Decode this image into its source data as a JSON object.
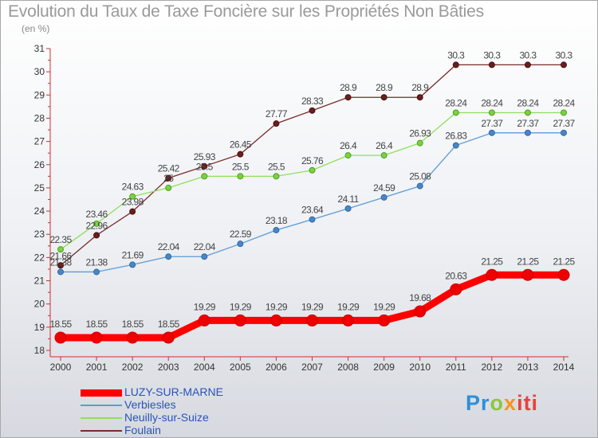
{
  "title": "Evolution du Taux de Taxe Foncière sur les Propriétés Non Bâties",
  "ylabel": "(en %)",
  "logo": {
    "p1": "Pr",
    "p2": "o",
    "p3": "x",
    "p4": "iti"
  },
  "chart_data": {
    "type": "line",
    "x": [
      2000,
      2001,
      2002,
      2003,
      2004,
      2005,
      2006,
      2007,
      2008,
      2009,
      2010,
      2011,
      2012,
      2013,
      2014
    ],
    "ylim": [
      18,
      31
    ],
    "yticks": [
      18,
      19,
      20,
      21,
      22,
      23,
      24,
      25,
      26,
      27,
      28,
      29,
      30,
      31
    ],
    "grid": false,
    "legend": "bottom-left",
    "series": [
      {
        "name": "LUZY-SUR-MARNE",
        "color": "#ff0000",
        "values": [
          18.55,
          18.55,
          18.55,
          18.55,
          19.29,
          19.29,
          19.29,
          19.29,
          19.29,
          19.29,
          19.68,
          20.63,
          21.25,
          21.25,
          21.25
        ]
      },
      {
        "name": "Verbiesles",
        "color": "#5b9bd5",
        "values": [
          21.38,
          21.38,
          21.69,
          22.04,
          22.04,
          22.59,
          23.18,
          23.64,
          24.11,
          24.59,
          25.08,
          26.83,
          27.37,
          27.37,
          27.37
        ]
      },
      {
        "name": "Neuilly-sur-Suize",
        "color": "#8fe05a",
        "values": [
          22.35,
          23.46,
          24.63,
          25.0,
          25.5,
          25.5,
          25.5,
          25.76,
          26.4,
          26.4,
          26.93,
          28.24,
          28.24,
          28.24,
          28.24
        ]
      },
      {
        "name": "Foulain",
        "color": "#7b2a2a",
        "values": [
          21.66,
          22.96,
          23.98,
          25.42,
          25.93,
          26.45,
          27.77,
          28.33,
          28.9,
          28.9,
          28.9,
          30.3,
          30.3,
          30.3,
          30.3
        ]
      }
    ]
  }
}
